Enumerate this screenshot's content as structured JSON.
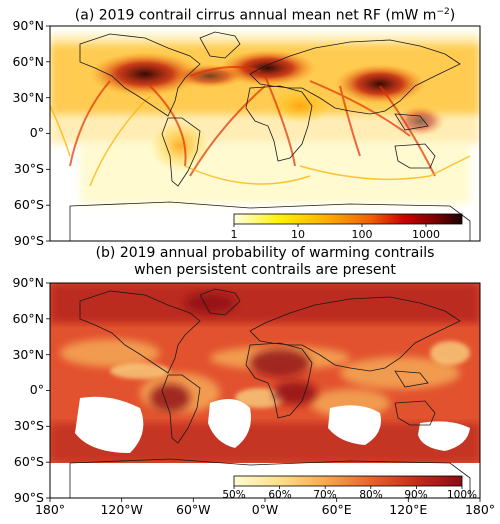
{
  "panel_a": {
    "title": "(a) 2019 contrail cirrus annual mean net RF (mW m",
    "title_exp": "−2",
    "title_end": ")",
    "colorbar": {
      "scale": "log",
      "range": [
        1,
        3000
      ],
      "ticks": [
        "1",
        "10",
        "100",
        "1000"
      ],
      "colors": [
        "#ffffe6",
        "#fff200",
        "#ffb000",
        "#f06000",
        "#c80000",
        "#700000",
        "#1a0000"
      ]
    }
  },
  "panel_b": {
    "title_line1": "(b) 2019 annual probability of warming contrails",
    "title_line2": "when persistent contrails are present",
    "colorbar": {
      "scale": "linear",
      "range": [
        "50%",
        "100%"
      ],
      "ticks": [
        "50%",
        "60%",
        "70%",
        "80%",
        "90%",
        "100%"
      ],
      "colors": [
        "#fffbd2",
        "#fde08a",
        "#f7a94e",
        "#e8642a",
        "#c52a1c",
        "#8e0b15"
      ]
    }
  },
  "lat_labels": [
    "90°N",
    "60°N",
    "30°N",
    "0°",
    "30°S",
    "60°S",
    "90°S"
  ],
  "lon_labels": [
    "180°",
    "120°W",
    "60°W",
    "0°W",
    "60°E",
    "120°E",
    "180°"
  ],
  "colors": {
    "coast": "#1a1a1a",
    "high_rf": "#1a0000",
    "mid_rf": "#d83a00",
    "low_rf": "#ffd000"
  }
}
